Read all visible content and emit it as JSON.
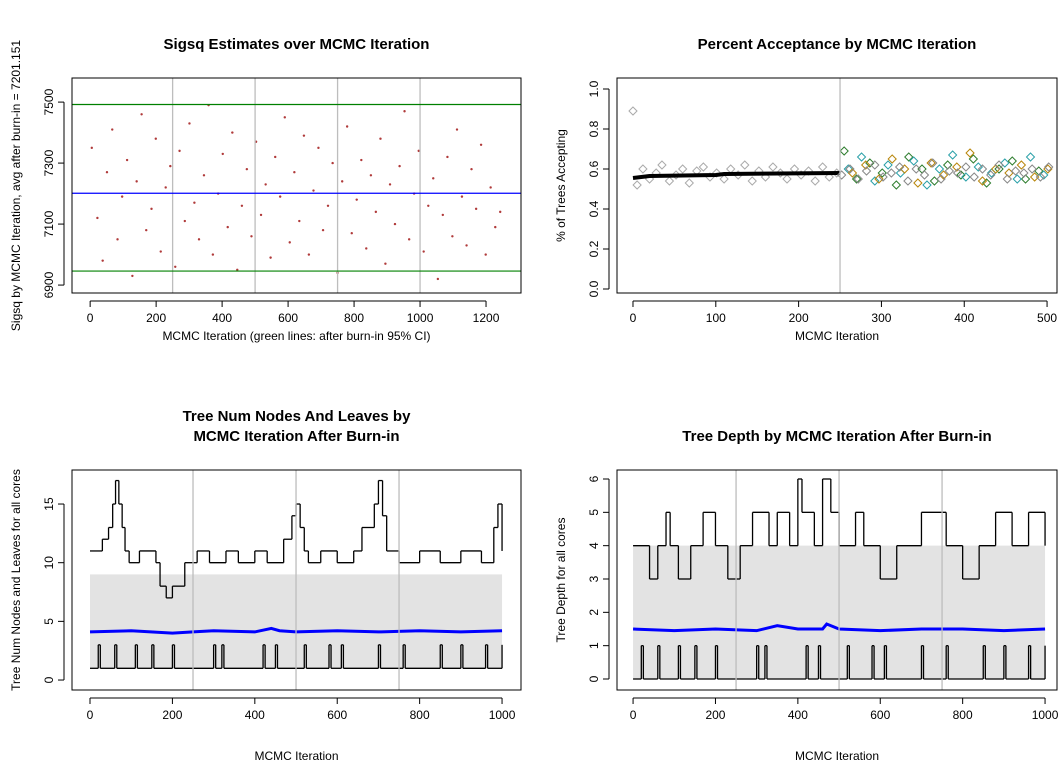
{
  "chart_data": [
    {
      "type": "scatter",
      "title": "Sigsq Estimates over MCMC Iteration",
      "xlabel": "MCMC Iteration (green lines: after burn-in 95% CI)",
      "ylabel": "Sigsq by MCMC Iteration, avg after burn-in = 7201.151",
      "xlim": [
        -55,
        1306
      ],
      "ylim": [
        6874,
        7579
      ],
      "xticks": [
        0,
        200,
        400,
        600,
        800,
        1000,
        1200
      ],
      "yticks": [
        6900,
        7100,
        7300,
        7500
      ],
      "vlines": [
        250,
        500,
        750,
        1000
      ],
      "hlines": [
        {
          "value": 7201.151,
          "color": "#0000ff"
        },
        {
          "value": 7492,
          "color": "#008000"
        },
        {
          "value": 6946,
          "color": "#008000"
        }
      ],
      "series": [
        {
          "color": "#b03a3a",
          "mode": "points",
          "shape": "dot",
          "x": [
            5,
            22,
            38,
            51,
            67,
            83,
            97,
            112,
            128,
            141,
            156,
            170,
            186,
            199,
            214,
            229,
            243,
            258,
            271,
            287,
            301,
            316,
            330,
            345,
            359,
            372,
            388,
            402,
            417,
            431,
            446,
            460,
            475,
            489,
            503,
            518,
            532,
            547,
            561,
            576,
            590,
            605,
            619,
            634,
            648,
            663,
            677,
            692,
            706,
            721,
            735,
            750,
            764,
            779,
            793,
            808,
            822,
            837,
            851,
            866,
            880,
            895,
            909,
            924,
            938,
            953,
            967,
            982,
            996,
            1011,
            1025,
            1040,
            1054,
            1069,
            1083,
            1098,
            1112,
            1127,
            1141,
            1156,
            1170,
            1185,
            1199,
            1214,
            1228,
            1243
          ],
          "values": [
            7350,
            7120,
            6980,
            7270,
            7410,
            7050,
            7190,
            7310,
            6930,
            7240,
            7460,
            7080,
            7150,
            7380,
            7010,
            7220,
            7290,
            6960,
            7340,
            7110,
            7430,
            7170,
            7050,
            7260,
            7490,
            7000,
            7200,
            7330,
            7090,
            7400,
            6950,
            7160,
            7280,
            7060,
            7370,
            7130,
            7230,
            6990,
            7320,
            7190,
            7450,
            7040,
            7270,
            7110,
            7390,
            7000,
            7210,
            7350,
            7080,
            7160,
            7300,
            6940,
            7240,
            7420,
            7070,
            7180,
            7310,
            7020,
            7260,
            7140,
            7380,
            6970,
            7230,
            7100,
            7290,
            7470,
            7050,
            7200,
            7340,
            7010,
            7160,
            7250,
            6920,
            7130,
            7320,
            7060,
            7410,
            7190,
            7030,
            7280,
            7150,
            7360,
            7000,
            7220,
            7090,
            7140
          ]
        }
      ]
    },
    {
      "type": "scatter",
      "title": "Percent Acceptance by MCMC Iteration",
      "xlabel": "MCMC Iteration",
      "ylabel": "% of Trees Accepting",
      "xlim": [
        -19.3,
        512
      ],
      "ylim": [
        -0.02,
        1.055
      ],
      "xticks": [
        0,
        100,
        200,
        300,
        400,
        500
      ],
      "yticks": [
        {
          "value": 0,
          "label": "0.0"
        },
        0.2,
        0.4,
        0.6,
        0.8,
        {
          "value": 1,
          "label": "1.0"
        }
      ],
      "vlines": [
        250
      ],
      "hlines": [],
      "series": [
        {
          "color": "#aaaaaa",
          "mode": "points",
          "shape": "diamond",
          "x": [
            0,
            5,
            12,
            20,
            28,
            35,
            44,
            52,
            60,
            68,
            77,
            85,
            93,
            101,
            110,
            118,
            127,
            135,
            144,
            152,
            160,
            169,
            178,
            186,
            195,
            203,
            212,
            220,
            229,
            237,
            246
          ],
          "values": [
            0.89,
            0.52,
            0.6,
            0.55,
            0.58,
            0.62,
            0.54,
            0.57,
            0.6,
            0.53,
            0.59,
            0.61,
            0.56,
            0.58,
            0.55,
            0.6,
            0.57,
            0.62,
            0.54,
            0.59,
            0.56,
            0.61,
            0.58,
            0.55,
            0.6,
            0.57,
            0.59,
            0.54,
            0.61,
            0.56,
            0.58
          ]
        },
        {
          "color": "#000000",
          "mode": "line",
          "line_width": 4,
          "x": [
            0,
            10,
            20,
            100,
            110,
            250
          ],
          "values": [
            0.555,
            0.56,
            0.565,
            0.57,
            0.575,
            0.58
          ]
        },
        {
          "color": "#2e7d2e",
          "mode": "points",
          "shape": "diamond",
          "x": [
            255,
            270,
            286,
            301,
            318,
            333,
            349,
            364,
            380,
            396,
            411,
            427,
            442,
            458,
            474,
            490
          ],
          "values": [
            0.69,
            0.55,
            0.63,
            0.58,
            0.52,
            0.66,
            0.6,
            0.54,
            0.62,
            0.57,
            0.65,
            0.53,
            0.6,
            0.64,
            0.55,
            0.59
          ]
        },
        {
          "color": "#2aa0a8",
          "mode": "points",
          "shape": "diamond",
          "x": [
            260,
            276,
            292,
            308,
            323,
            339,
            355,
            370,
            386,
            402,
            417,
            433,
            449,
            464,
            480,
            496
          ],
          "values": [
            0.6,
            0.66,
            0.54,
            0.62,
            0.58,
            0.64,
            0.52,
            0.6,
            0.67,
            0.56,
            0.61,
            0.58,
            0.63,
            0.55,
            0.66,
            0.57
          ]
        },
        {
          "color": "#b8860b",
          "mode": "points",
          "shape": "diamond",
          "x": [
            265,
            281,
            297,
            313,
            328,
            344,
            360,
            375,
            391,
            407,
            422,
            438,
            454,
            469,
            485,
            501
          ],
          "values": [
            0.58,
            0.62,
            0.55,
            0.65,
            0.6,
            0.53,
            0.63,
            0.57,
            0.61,
            0.68,
            0.54,
            0.6,
            0.58,
            0.62,
            0.56,
            0.6
          ]
        },
        {
          "color": "#888888",
          "mode": "points",
          "shape": "diamond",
          "x": [
            252,
            262,
            272,
            282,
            292,
            302,
            312,
            322,
            332,
            342,
            352,
            362,
            372,
            382,
            392,
            402,
            412,
            422,
            432,
            442,
            452,
            462,
            472,
            482,
            492,
            502
          ],
          "values": [
            0.57,
            0.6,
            0.55,
            0.59,
            0.62,
            0.56,
            0.58,
            0.61,
            0.54,
            0.6,
            0.57,
            0.63,
            0.55,
            0.59,
            0.58,
            0.61,
            0.56,
            0.6,
            0.57,
            0.62,
            0.55,
            0.59,
            0.58,
            0.6,
            0.56,
            0.61
          ]
        }
      ]
    },
    {
      "type": "line",
      "title": [
        "Tree Num Nodes And Leaves by",
        "MCMC Iteration After Burn-in"
      ],
      "xlabel": "MCMC Iteration",
      "ylabel": "Tree Num Nodes and Leaves for all cores",
      "xlim": [
        -43.7,
        1046
      ],
      "ylim": [
        -0.85,
        17.9
      ],
      "xticks": [
        0,
        200,
        400,
        600,
        800,
        1000
      ],
      "yticks": [
        0,
        5,
        10,
        15
      ],
      "vlines": [
        250,
        500,
        750
      ],
      "hlines": [],
      "series": [
        {
          "color": "#e3e3e3",
          "mode": "band",
          "x": [
            0,
            1000
          ],
          "values": [
            9,
            9
          ],
          "lower": [
            1,
            1
          ]
        },
        {
          "color": "#000000",
          "mode": "step",
          "x": [
            0,
            30,
            45,
            55,
            62,
            70,
            78,
            85,
            95,
            120,
            160,
            170,
            185,
            200,
            230,
            260,
            290,
            330,
            360,
            400,
            430,
            470,
            490,
            500,
            510,
            520,
            530,
            560,
            600,
            640,
            660,
            690,
            700,
            710,
            720,
            750,
            800,
            850,
            900,
            950,
            980,
            990,
            1000
          ],
          "values": [
            11,
            12,
            13,
            15,
            17,
            15,
            13,
            11,
            10,
            11,
            10,
            8,
            7,
            8,
            10,
            11,
            10,
            11,
            10,
            11,
            10,
            12,
            14,
            15,
            13,
            11,
            10,
            11,
            10,
            11,
            13,
            15,
            17,
            14,
            11,
            10,
            11,
            10,
            11,
            10,
            13,
            15,
            11
          ]
        },
        {
          "color": "#0000ff",
          "mode": "line",
          "line_width": 3,
          "x": [
            0,
            100,
            200,
            250,
            300,
            400,
            440,
            460,
            500,
            600,
            700,
            800,
            900,
            1000
          ],
          "values": [
            4.1,
            4.2,
            4.0,
            4.1,
            4.2,
            4.1,
            4.4,
            4.2,
            4.1,
            4.2,
            4.1,
            4.2,
            4.1,
            4.2
          ]
        },
        {
          "color": "#000000",
          "mode": "step",
          "x": [
            0,
            20,
            25,
            60,
            65,
            110,
            115,
            150,
            155,
            200,
            205,
            300,
            305,
            320,
            325,
            420,
            425,
            450,
            455,
            520,
            525,
            580,
            585,
            610,
            615,
            700,
            705,
            760,
            765,
            850,
            855,
            900,
            905,
            960,
            965,
            1000
          ],
          "values": [
            1,
            3,
            1,
            3,
            1,
            3,
            1,
            3,
            1,
            3,
            1,
            3,
            1,
            3,
            1,
            3,
            1,
            3,
            1,
            3,
            1,
            3,
            1,
            3,
            1,
            3,
            1,
            3,
            1,
            3,
            1,
            3,
            1,
            3,
            1,
            3
          ]
        }
      ]
    },
    {
      "type": "line",
      "title": "Tree Depth by MCMC Iteration After Burn-in",
      "xlabel": "MCMC Iteration",
      "ylabel": "Tree Depth for all cores",
      "xlim": [
        -39,
        1029
      ],
      "ylim": [
        -0.33,
        6.27
      ],
      "xticks": [
        0,
        200,
        400,
        600,
        800,
        1000
      ],
      "yticks": [
        0,
        1,
        2,
        3,
        4,
        5,
        6
      ],
      "vlines": [
        250,
        500,
        750
      ],
      "hlines": [],
      "series": [
        {
          "color": "#e3e3e3",
          "mode": "band",
          "x": [
            0,
            1000
          ],
          "values": [
            4,
            4
          ],
          "lower": [
            0,
            0
          ]
        },
        {
          "color": "#000000",
          "mode": "step",
          "x": [
            0,
            40,
            60,
            80,
            90,
            110,
            140,
            170,
            200,
            230,
            260,
            290,
            330,
            350,
            380,
            400,
            410,
            440,
            460,
            480,
            500,
            540,
            560,
            600,
            640,
            700,
            760,
            800,
            840,
            880,
            920,
            960,
            1000
          ],
          "values": [
            4,
            3,
            4,
            5,
            4,
            3,
            4,
            5,
            4,
            3,
            4,
            5,
            4,
            5,
            4,
            6,
            5,
            4,
            6,
            5,
            4,
            5,
            4,
            3,
            4,
            5,
            4,
            3,
            4,
            5,
            4,
            5,
            4
          ]
        },
        {
          "color": "#0000ff",
          "mode": "line",
          "line_width": 3,
          "x": [
            0,
            100,
            200,
            300,
            350,
            400,
            460,
            470,
            500,
            600,
            700,
            800,
            900,
            1000
          ],
          "values": [
            1.5,
            1.45,
            1.5,
            1.45,
            1.6,
            1.5,
            1.5,
            1.65,
            1.5,
            1.45,
            1.5,
            1.5,
            1.45,
            1.5
          ]
        },
        {
          "color": "#000000",
          "mode": "step",
          "x": [
            0,
            20,
            25,
            60,
            65,
            110,
            115,
            150,
            155,
            200,
            205,
            300,
            305,
            320,
            325,
            420,
            425,
            450,
            455,
            520,
            525,
            580,
            585,
            610,
            615,
            700,
            705,
            760,
            765,
            850,
            855,
            900,
            905,
            960,
            965,
            1000
          ],
          "values": [
            0,
            1,
            0,
            1,
            0,
            1,
            0,
            1,
            0,
            1,
            0,
            1,
            0,
            1,
            0,
            1,
            0,
            1,
            0,
            1,
            0,
            1,
            0,
            1,
            0,
            1,
            0,
            1,
            0,
            1,
            0,
            1,
            0,
            1,
            0,
            1
          ]
        }
      ]
    }
  ]
}
